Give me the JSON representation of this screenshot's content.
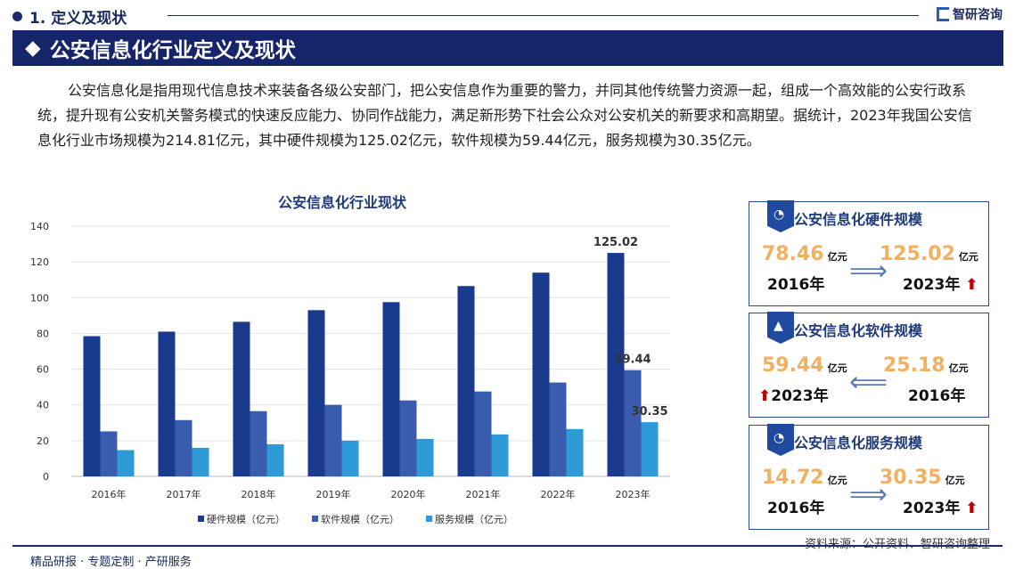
{
  "section": "1. 定义及现状",
  "brand": "智研咨询",
  "banner": "公安信息化行业定义及现状",
  "paragraph": "公安信息化是指用现代信息技术来装备各级公安部门，把公安信息作为重要的警力，并同其他传统警力资源一起，组成一个高效能的公安行政系统，提升现有公安机关警务模式的快速反应能力、协同作战能力，满足新形势下社会公众对公安机关的新要求和高期望。据统计，2023年我国公安信息化行业市场规模为214.81亿元，其中硬件规模为125.02亿元，软件规模为59.44亿元，服务规模为30.35亿元。",
  "chart_data": {
    "type": "bar",
    "title": "公安信息化行业现状",
    "categories": [
      "2016年",
      "2017年",
      "2018年",
      "2019年",
      "2020年",
      "2021年",
      "2022年",
      "2023年"
    ],
    "series": [
      {
        "name": "硬件规模（亿元）",
        "color": "#1a3a8e",
        "values": [
          78.46,
          81,
          86.5,
          93,
          97.5,
          106.5,
          114,
          125.02
        ]
      },
      {
        "name": "软件规模（亿元）",
        "color": "#3a5cae",
        "values": [
          25.18,
          31.5,
          36.5,
          40,
          42.5,
          47.5,
          52.5,
          59.44
        ]
      },
      {
        "name": "服务规模（亿元）",
        "color": "#2e9ad8",
        "values": [
          14.72,
          16,
          18,
          20,
          21,
          23.5,
          26.5,
          30.35
        ]
      }
    ],
    "data_labels": [
      "125.02",
      "59.44",
      "30.35"
    ],
    "ylim": [
      0,
      140
    ],
    "yticks": [
      "0",
      "20",
      "40",
      "60",
      "80",
      "100",
      "120",
      "140"
    ],
    "grid": true,
    "legend": "bottom"
  },
  "cards": [
    {
      "title": "公安信息化硬件规模",
      "left_val": "78.46",
      "left_year": "2016年",
      "right_val": "125.02",
      "right_year": "2023年",
      "unit": "亿元",
      "icon": "pie-chart-icon"
    },
    {
      "title": "公安信息化软件规模",
      "left_val": "59.44",
      "left_year": "2023年",
      "right_val": "25.18",
      "right_year": "2016年",
      "unit": "亿元",
      "icon": "growth-chart-icon"
    },
    {
      "title": "公安信息化服务规模",
      "left_val": "14.72",
      "left_year": "2016年",
      "right_val": "30.35",
      "right_year": "2023年",
      "unit": "亿元",
      "icon": "pie-chart-icon"
    }
  ],
  "source": "资料来源：公开资料、智研咨询整理",
  "footer": "精品研报 · 专题定制 · 产研服务"
}
